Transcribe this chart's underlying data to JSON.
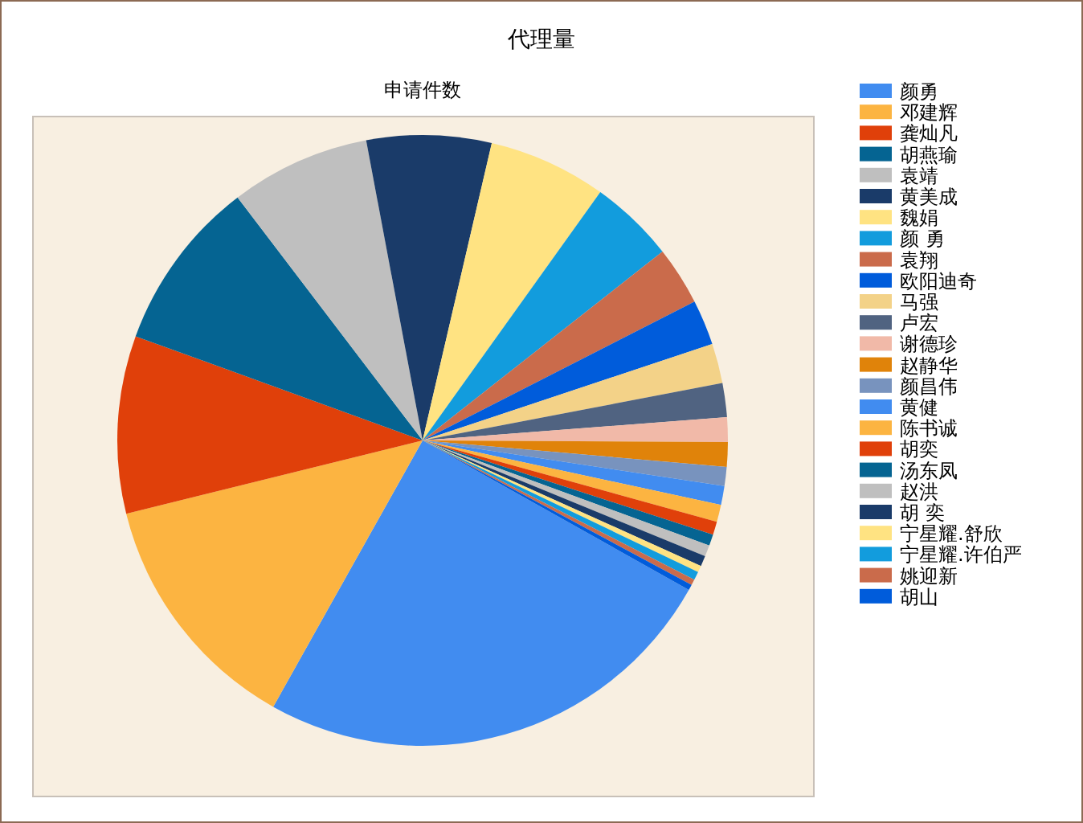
{
  "chart_data": {
    "type": "pie",
    "title": "代理量",
    "subtitle": "申请件数",
    "legend": "right",
    "categories": [
      "颜勇",
      "邓建辉",
      "龚灿凡",
      "胡燕瑜",
      "袁靖",
      "黄美成",
      "魏娟",
      "颜 勇",
      "袁翔",
      "欧阳迪奇",
      "马强",
      "卢宏",
      "谢德珍",
      "赵静华",
      "颜昌伟",
      "黄健",
      "陈书诚",
      "胡奕",
      "汤东凤",
      "赵洪",
      "胡 奕",
      "宁星耀.舒欣",
      "宁星耀.许伯严",
      "姚迎新",
      "胡山"
    ],
    "values": [
      25.0,
      13.0,
      9.4,
      9.1,
      7.4,
      6.6,
      6.25,
      4.5,
      3.1,
      2.4,
      2.1,
      1.8,
      1.3,
      1.3,
      1.0,
      1.0,
      0.9,
      0.7,
      0.6,
      0.6,
      0.55,
      0.35,
      0.45,
      0.3,
      0.3
    ],
    "colors": [
      "#418cf0",
      "#fcb441",
      "#e0400a",
      "#056492",
      "#bfbfbf",
      "#1a3b69",
      "#ffe382",
      "#129cdd",
      "#ca6b4b",
      "#005cdb",
      "#f3d288",
      "#506381",
      "#f1b9a8",
      "#e0830a",
      "#7893be",
      "#418cf0",
      "#fcb441",
      "#e0400a",
      "#056492",
      "#bfbfbf",
      "#1a3b69",
      "#ffe382",
      "#129cdd",
      "#ca6b4b",
      "#005cdb"
    ]
  }
}
